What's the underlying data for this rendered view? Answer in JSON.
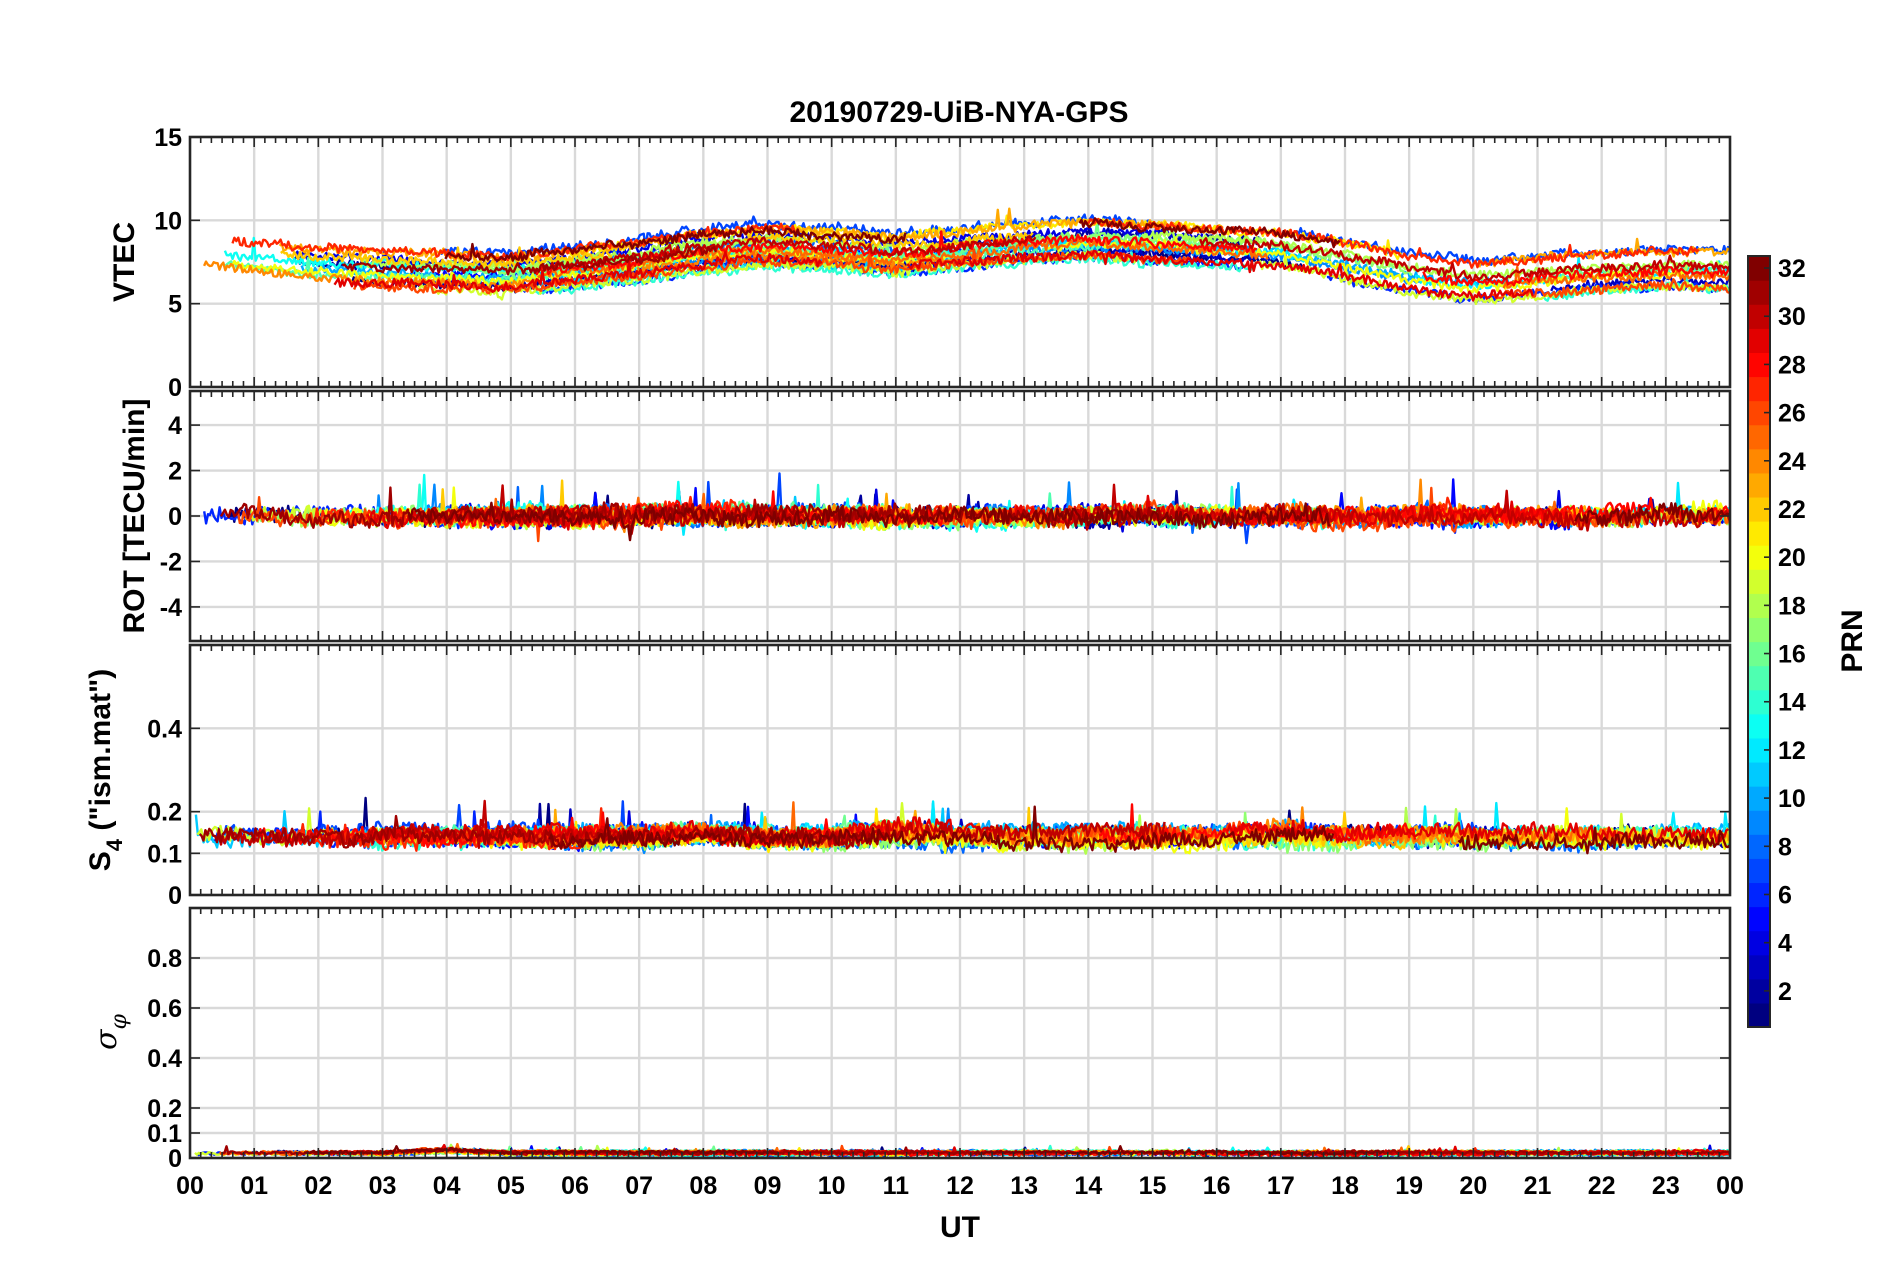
{
  "chart_data": {
    "type": "line",
    "title": "20190729-UiB-NYA-GPS",
    "xlabel": "UT",
    "x_ticks": [
      "00",
      "01",
      "02",
      "03",
      "04",
      "05",
      "06",
      "07",
      "08",
      "09",
      "10",
      "11",
      "12",
      "13",
      "14",
      "15",
      "16",
      "17",
      "18",
      "19",
      "20",
      "21",
      "22",
      "23",
      "00"
    ],
    "xlim": [
      0,
      24
    ],
    "panels": [
      {
        "id": "vtec",
        "ylabel": "VTEC",
        "ylim": [
          0,
          15
        ],
        "y_ticks": [
          0,
          5,
          10,
          15
        ],
        "y_tick_labels": [
          "0",
          "5",
          "10",
          "15"
        ],
        "baseline": [
          8.0,
          7.6,
          7.2,
          7.0,
          6.9,
          6.8,
          7.2,
          7.6,
          8.2,
          8.5,
          8.3,
          8.0,
          8.3,
          8.7,
          8.9,
          8.7,
          8.5,
          8.3,
          7.6,
          6.8,
          6.4,
          6.6,
          6.9,
          7.1,
          7.0
        ],
        "spread": 1.3,
        "noise": 0.25
      },
      {
        "id": "rot",
        "ylabel": "ROT [TECU/min]",
        "ylim": [
          -5.5,
          5.5
        ],
        "y_ticks": [
          -4,
          -2,
          0,
          2,
          4
        ],
        "y_tick_labels": [
          "-4",
          "-2",
          "0",
          "2",
          "4"
        ],
        "baseline": [
          0,
          0,
          0,
          0,
          0,
          0,
          0,
          0,
          0,
          0,
          0,
          0,
          0,
          0,
          0,
          0,
          0,
          0,
          0,
          0,
          0,
          0,
          0,
          0,
          0
        ],
        "spread": 0.05,
        "noise": 0.35
      },
      {
        "id": "s4",
        "ylabel_main": "S",
        "ylabel_sub": "4",
        "ylabel_rest": " (\"ism.mat\")",
        "ylim": [
          0,
          0.6
        ],
        "y_ticks": [
          0,
          0.1,
          0.2,
          0.4
        ],
        "y_tick_labels": [
          "0",
          "0.1",
          "0.2",
          "0.4"
        ],
        "baseline": [
          0.14,
          0.14,
          0.14,
          0.14,
          0.14,
          0.14,
          0.14,
          0.14,
          0.15,
          0.14,
          0.14,
          0.15,
          0.14,
          0.14,
          0.14,
          0.14,
          0.14,
          0.15,
          0.14,
          0.14,
          0.14,
          0.14,
          0.14,
          0.14,
          0.14
        ],
        "spread": 0.012,
        "noise": 0.018
      },
      {
        "id": "sigma",
        "ylabel_symbol": "σ",
        "ylabel_sub": "φ",
        "ylim": [
          0,
          1.0
        ],
        "y_ticks": [
          0,
          0.1,
          0.2,
          0.4,
          0.6,
          0.8
        ],
        "y_tick_labels": [
          "0",
          "0.1",
          "0.2",
          "0.4",
          "0.6",
          "0.8"
        ],
        "baseline": [
          0.02,
          0.02,
          0.02,
          0.02,
          0.03,
          0.02,
          0.02,
          0.02,
          0.02,
          0.02,
          0.02,
          0.02,
          0.02,
          0.02,
          0.02,
          0.02,
          0.02,
          0.02,
          0.02,
          0.02,
          0.02,
          0.02,
          0.02,
          0.02,
          0.02
        ],
        "spread": 0.004,
        "noise": 0.006
      }
    ],
    "series_count": 32,
    "colorbar": {
      "label": "PRN",
      "range": [
        1,
        32
      ],
      "ticks": [
        2,
        4,
        6,
        8,
        10,
        12,
        14,
        16,
        18,
        20,
        22,
        24,
        26,
        28,
        30,
        32
      ],
      "colormap": "jet"
    },
    "grid": true
  }
}
